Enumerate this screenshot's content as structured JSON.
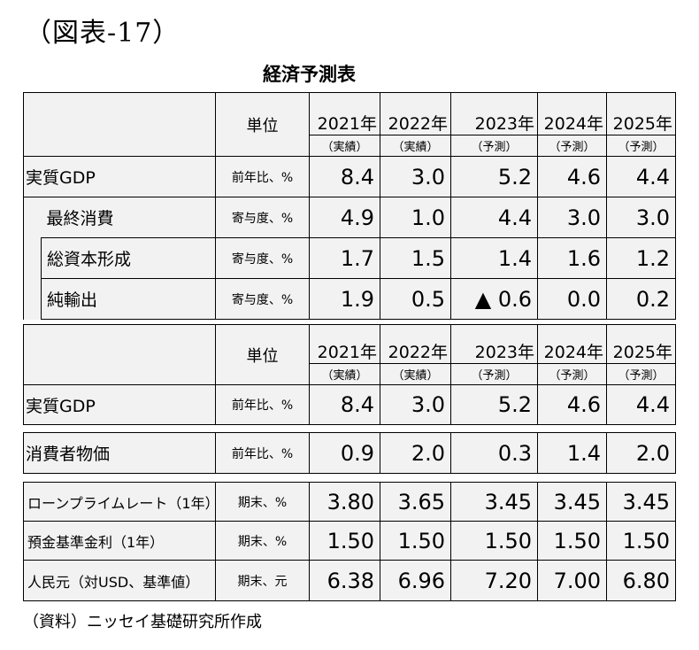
{
  "figure_label": "（図表-17）",
  "table_title": "経済予測表",
  "header": {
    "unit_label": "単位",
    "years": [
      "2021年",
      "2022年",
      "2023年",
      "2024年",
      "2025年"
    ],
    "status": [
      "（実績）",
      "（実績）",
      "（予測）",
      "（予測）",
      "（予測）"
    ]
  },
  "gdp_section": {
    "rows": [
      {
        "label": "実質GDP",
        "unit": "前年比、%",
        "values": [
          "8.4",
          "3.0",
          "5.2",
          "4.6",
          "4.4"
        ]
      },
      {
        "label": "最終消費",
        "unit": "寄与度、%",
        "values": [
          "4.9",
          "1.0",
          "4.4",
          "3.0",
          "3.0"
        ]
      },
      {
        "label": "総資本形成",
        "unit": "寄与度、%",
        "values": [
          "1.7",
          "1.5",
          "1.4",
          "1.6",
          "1.2"
        ]
      },
      {
        "label": "純輸出",
        "unit": "寄与度、%",
        "values": [
          "1.9",
          "0.5",
          "▲ 0.6",
          "0.0",
          "0.2"
        ]
      }
    ]
  },
  "lower_gdp": {
    "label": "実質GDP",
    "unit": "前年比、%",
    "values": [
      "8.4",
      "3.0",
      "5.2",
      "4.6",
      "4.4"
    ]
  },
  "cpi": {
    "label": "消費者物価",
    "unit": "前年比、%",
    "values": [
      "0.9",
      "2.0",
      "0.3",
      "1.4",
      "2.0"
    ]
  },
  "rates": [
    {
      "label": "ローンプライムレート（1年）",
      "unit": "期末、%",
      "values": [
        "3.80",
        "3.65",
        "3.45",
        "3.45",
        "3.45"
      ]
    },
    {
      "label": "預金基準金利（1年）",
      "unit": "期末、%",
      "values": [
        "1.50",
        "1.50",
        "1.50",
        "1.50",
        "1.50"
      ]
    },
    {
      "label": "人民元（対USD、基準値）",
      "unit": "期末、元",
      "values": [
        "6.38",
        "6.96",
        "7.20",
        "7.00",
        "6.80"
      ]
    }
  ],
  "source": "（資料）ニッセイ基礎研究所作成"
}
